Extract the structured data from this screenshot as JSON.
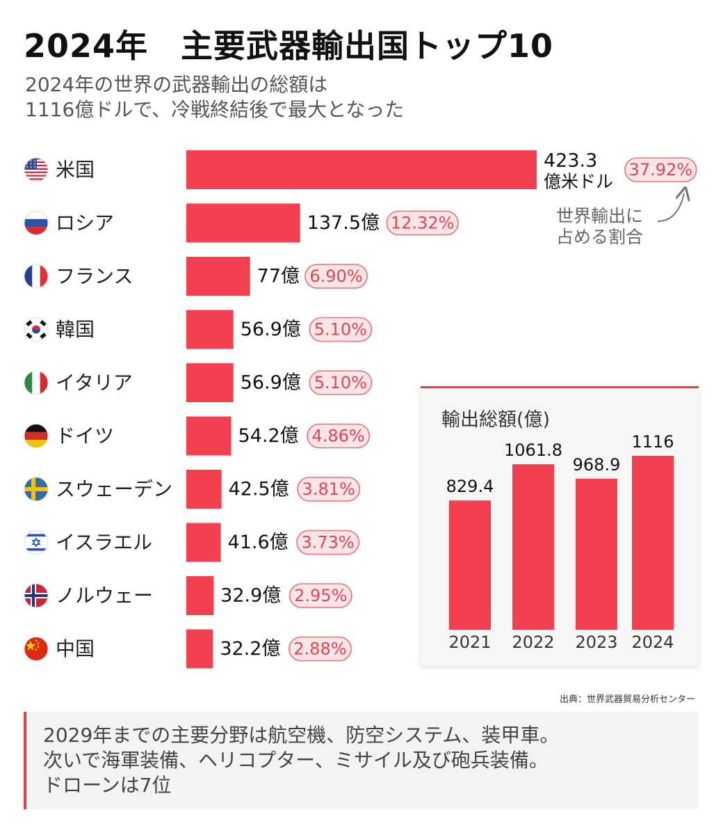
{
  "title": "2024年　主要武器輸出国トップ10",
  "subtitle": {
    "line1": "2024年の世界の武器輸出の総額は",
    "line2": "1116億ドルで、冷戦終結後で最大となった"
  },
  "note": {
    "line1": "世界輸出に",
    "line2": "占める割合"
  },
  "colors": {
    "bar": "#f2404f",
    "pill_bg": "#fbe5e7",
    "pill_border": "#e8707b",
    "pill_text": "#e24655",
    "accent": "#e83b4b"
  },
  "chart_data": [
    {
      "type": "bar",
      "orientation": "horizontal",
      "title": "2024年　主要武器輸出国トップ10",
      "unit": "億米ドル",
      "categories": [
        "米国",
        "ロシア",
        "フランス",
        "韓国",
        "イタリア",
        "ドイツ",
        "スウェーデン",
        "イスラエル",
        "ノルウェー",
        "中国"
      ],
      "flags": [
        "flag-us-icon",
        "flag-russia-icon",
        "flag-france-icon",
        "flag-korea-icon",
        "flag-italy-icon",
        "flag-germany-icon",
        "flag-sweden-icon",
        "flag-israel-icon",
        "flag-norway-icon",
        "flag-china-icon"
      ],
      "values": [
        423.3,
        137.5,
        77,
        56.9,
        56.9,
        54.2,
        42.5,
        41.6,
        32.9,
        32.2
      ],
      "value_labels": [
        "423.3",
        "137.5億",
        "77億",
        "56.9億",
        "56.9億",
        "54.2億",
        "42.5億",
        "41.6億",
        "32.9億",
        "32.2億"
      ],
      "first_value_unit": "億米ドル",
      "shares": [
        "37.92%",
        "12.32%",
        "6.90%",
        "5.10%",
        "5.10%",
        "4.86%",
        "3.81%",
        "3.73%",
        "2.95%",
        "2.88%"
      ],
      "share_label": "世界輸出に占める割合"
    },
    {
      "type": "bar",
      "title": "輸出総額(億)",
      "categories": [
        "2021",
        "2022",
        "2023",
        "2024"
      ],
      "values": [
        829.4,
        1061.8,
        968.9,
        1116
      ],
      "value_labels": [
        "829.4",
        "1061.8",
        "968.9",
        "1116"
      ]
    }
  ],
  "source": "出典：世界武器貿易分析センター",
  "footer": {
    "line1": "2029年までの主要分野は航空機、防空システム、装甲車。",
    "line2": "次いで海軍装備、ヘリコプター、ミサイル及び砲兵装備。",
    "line3": "ドローンは7位"
  }
}
